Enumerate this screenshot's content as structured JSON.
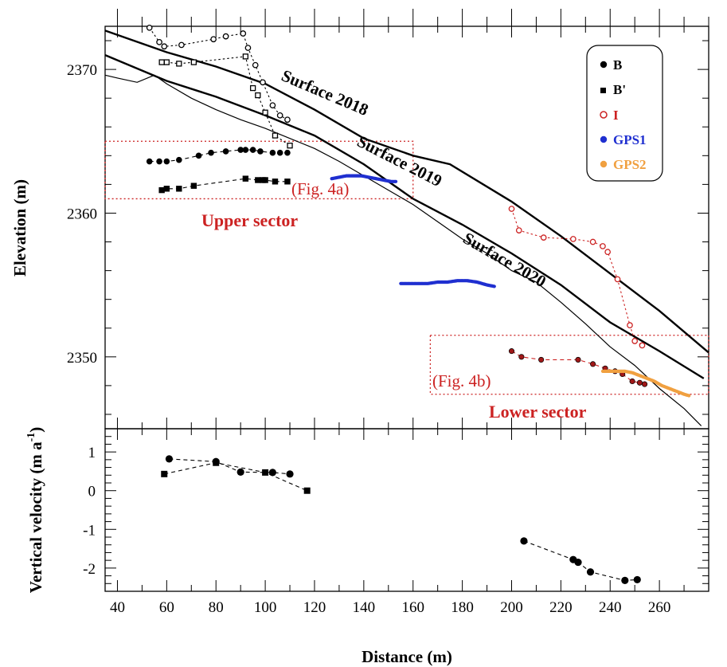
{
  "chart_data": [
    {
      "type": "line",
      "panel": "top",
      "xlabel": "Distance (m)",
      "ylabel": "Elevation (m)",
      "xlim": [
        35,
        280
      ],
      "ylim": [
        2345,
        2373
      ],
      "xticks": [
        40,
        60,
        80,
        100,
        120,
        140,
        160,
        180,
        200,
        220,
        240,
        260
      ],
      "yticks": [
        2350,
        2360,
        2370
      ],
      "grid": false,
      "legend_placement": "top-right",
      "legend": [
        {
          "label": "B",
          "marker": "circle-filled",
          "color": "#000000"
        },
        {
          "label": "B'",
          "marker": "square-filled",
          "color": "#000000"
        },
        {
          "label": "I",
          "marker": "circle-open",
          "color": "#cc2222"
        },
        {
          "label": "GPS1",
          "marker": "dot",
          "color": "#1f2fd0"
        },
        {
          "label": "GPS2",
          "marker": "dot",
          "color": "#f0a040"
        }
      ],
      "surfaces": [
        {
          "name": "Surface 2018",
          "width": 2.4,
          "x": [
            35,
            60,
            80,
            100,
            120,
            140,
            160,
            175,
            200,
            220,
            240,
            260,
            280
          ],
          "y": [
            2372.7,
            2371.2,
            2370.2,
            2369.0,
            2367.2,
            2365.2,
            2364.0,
            2363.4,
            2360.8,
            2358.4,
            2355.8,
            2353.2,
            2350.3
          ]
        },
        {
          "name": "Surface 2019",
          "width": 2.4,
          "x": [
            35,
            60,
            80,
            100,
            120,
            140,
            160,
            180,
            200,
            220,
            240,
            260,
            278
          ],
          "y": [
            2371.0,
            2369.2,
            2368.1,
            2366.8,
            2365.4,
            2363.4,
            2361.0,
            2359.2,
            2357.2,
            2355.0,
            2352.4,
            2350.4,
            2348.5
          ]
        },
        {
          "name": "Surface 2020",
          "width": 1.2,
          "x": [
            35,
            40,
            48,
            55,
            60,
            70,
            80,
            90,
            100,
            110,
            120,
            130,
            140,
            150,
            160,
            170,
            180,
            190,
            200,
            210,
            220,
            230,
            240,
            250,
            260,
            270,
            277
          ],
          "y": [
            2369.6,
            2369.4,
            2369.1,
            2369.6,
            2369.0,
            2368.0,
            2367.2,
            2366.5,
            2365.9,
            2365.2,
            2364.5,
            2363.6,
            2362.6,
            2361.6,
            2360.6,
            2359.4,
            2358.2,
            2357.2,
            2356.0,
            2355.2,
            2353.8,
            2352.3,
            2350.7,
            2349.4,
            2347.8,
            2346.4,
            2345.2
          ]
        }
      ],
      "surface_labels": [
        "Surface 2018",
        "Surface 2019",
        "Surface 2020"
      ],
      "series": [
        {
          "name": "B (upper)",
          "marker": "circle-filled",
          "color": "#000000",
          "x": [
            53,
            57,
            60,
            65,
            73,
            78,
            84,
            90,
            92,
            95,
            98,
            103,
            106,
            109
          ],
          "y": [
            2363.6,
            2363.6,
            2363.6,
            2363.7,
            2364.0,
            2364.2,
            2364.3,
            2364.4,
            2364.4,
            2364.4,
            2364.3,
            2364.2,
            2364.2,
            2364.2
          ]
        },
        {
          "name": "B' (upper)",
          "marker": "square-filled",
          "color": "#000000",
          "x": [
            58,
            60,
            65,
            71,
            92,
            97,
            99,
            100,
            104,
            109
          ],
          "y": [
            2361.6,
            2361.7,
            2361.7,
            2361.9,
            2362.4,
            2362.3,
            2362.3,
            2362.3,
            2362.2,
            2362.2
          ]
        },
        {
          "name": "B (open, upper)",
          "marker": "circle-open",
          "color": "#000000",
          "x": [
            53,
            57,
            59,
            66,
            79,
            84,
            91,
            93,
            96,
            99,
            103,
            106,
            109
          ],
          "y": [
            2372.9,
            2371.9,
            2371.6,
            2371.7,
            2372.1,
            2372.3,
            2372.5,
            2371.5,
            2370.3,
            2369.1,
            2367.5,
            2366.8,
            2366.5
          ]
        },
        {
          "name": "B' (open, upper)",
          "marker": "square-open",
          "color": "#000000",
          "x": [
            58,
            60,
            65,
            71,
            92,
            95,
            97,
            100,
            104,
            110
          ],
          "y": [
            2370.5,
            2370.5,
            2370.4,
            2370.5,
            2370.9,
            2368.7,
            2368.2,
            2367.0,
            2365.4,
            2364.7
          ]
        },
        {
          "name": "I (lower, open)",
          "marker": "circle-open",
          "color": "#cc2222",
          "x": [
            200,
            203,
            213,
            225,
            233,
            237,
            239,
            243,
            248,
            250,
            253
          ],
          "y": [
            2360.3,
            2358.8,
            2358.3,
            2358.2,
            2358.0,
            2357.7,
            2357.3,
            2355.4,
            2352.2,
            2351.1,
            2350.8
          ]
        },
        {
          "name": "I (lower, filled)",
          "marker": "circle-filled-red",
          "color": "#cc2222",
          "x": [
            200,
            204,
            212,
            227,
            233,
            238,
            242,
            245,
            249,
            252,
            254
          ],
          "y": [
            2350.4,
            2350.0,
            2349.8,
            2349.8,
            2349.5,
            2349.2,
            2349.0,
            2348.8,
            2348.3,
            2348.2,
            2348.1
          ]
        },
        {
          "name": "GPS1",
          "marker": "dot",
          "color": "#1f2fd0",
          "x": [
            127,
            130,
            133,
            136,
            139,
            142,
            145,
            148,
            151,
            153,
            155,
            158,
            162,
            166,
            170,
            174,
            178,
            182,
            186,
            190,
            193
          ],
          "y": [
            2362.4,
            2362.5,
            2362.6,
            2362.6,
            2362.6,
            2362.5,
            2362.4,
            2362.3,
            2362.2,
            2362.2,
            2355.1,
            2355.1,
            2355.1,
            2355.1,
            2355.2,
            2355.2,
            2355.3,
            2355.3,
            2355.2,
            2355.0,
            2354.9
          ]
        },
        {
          "name": "GPS2",
          "marker": "dot",
          "color": "#f0a040",
          "x": [
            237,
            240,
            243,
            246,
            249,
            252,
            255,
            258,
            261,
            264,
            267,
            270,
            272
          ],
          "y": [
            2349.0,
            2349.0,
            2349.0,
            2349.0,
            2348.9,
            2348.7,
            2348.5,
            2348.3,
            2348.0,
            2347.8,
            2347.6,
            2347.4,
            2347.3
          ]
        }
      ],
      "annotations": [
        {
          "text": "(Fig. 4a)",
          "color": "#cc2222",
          "box_x": [
            35,
            160
          ],
          "box_y": [
            2361,
            2365
          ]
        },
        {
          "text": "(Fig. 4b)",
          "color": "#cc2222",
          "box_x": [
            167,
            280
          ],
          "box_y": [
            2347.4,
            2351.5
          ]
        },
        {
          "text": "Upper sector",
          "color": "#cc2222"
        },
        {
          "text": "Lower sector",
          "color": "#cc2222"
        }
      ]
    },
    {
      "type": "line",
      "panel": "bottom",
      "xlabel": "Distance (m)",
      "ylabel": "Vertical velocity (m a-1)",
      "ylabel_main": "Vertical velocity (m a",
      "ylabel_sup": "-1",
      "ylabel_close": ")",
      "xlim": [
        35,
        280
      ],
      "ylim": [
        -2.6,
        1.6
      ],
      "yticks": [
        -2,
        -1,
        0,
        1
      ],
      "ytick_labels": [
        "-2",
        "-1",
        "0",
        "1"
      ],
      "series": [
        {
          "name": "B",
          "marker": "circle-filled",
          "color": "#000000",
          "x": [
            61,
            80,
            90,
            103,
            110
          ],
          "y": [
            0.82,
            0.75,
            0.48,
            0.47,
            0.43
          ]
        },
        {
          "name": "B'",
          "marker": "square-filled",
          "color": "#000000",
          "x": [
            59,
            80,
            100,
            117
          ],
          "y": [
            0.43,
            0.72,
            0.47,
            0.0
          ]
        },
        {
          "name": "B (lower)",
          "marker": "circle-filled",
          "color": "#000000",
          "x": [
            205,
            225,
            227,
            232,
            246,
            251
          ],
          "y": [
            -1.3,
            -1.78,
            -1.85,
            -2.1,
            -2.32,
            -2.3
          ]
        }
      ]
    }
  ]
}
